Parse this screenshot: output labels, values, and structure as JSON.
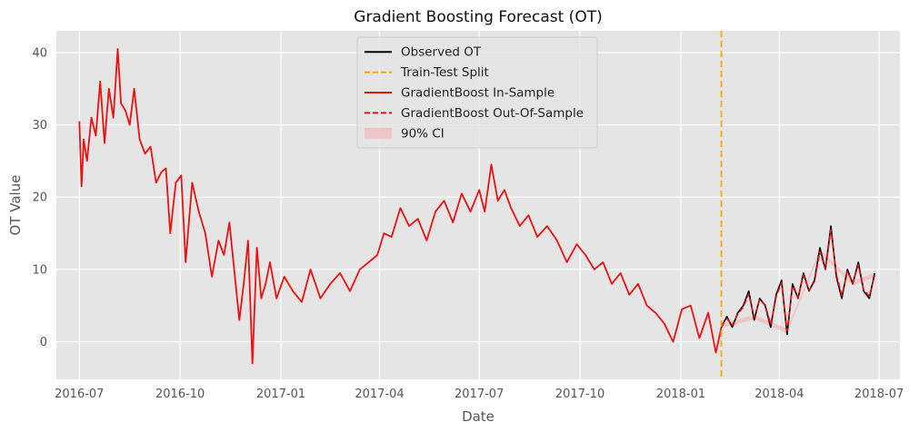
{
  "chart_data": {
    "type": "line",
    "title": "Gradient Boosting Forecast (OT)",
    "xlabel": "Date",
    "ylabel": "OT Value",
    "xlim": [
      "2016-06-10",
      "2018-07-20"
    ],
    "ylim": [
      -5.2,
      43
    ],
    "x_ticks": [
      "2016-07",
      "2016-10",
      "2017-01",
      "2017-04",
      "2017-07",
      "2017-10",
      "2018-01",
      "2018-04",
      "2018-07"
    ],
    "y_ticks": [
      0,
      10,
      20,
      30,
      40
    ],
    "grid": true,
    "legend_position": "top-center",
    "split_date": "2018-02-07",
    "colors": {
      "observed": "#000000",
      "split": "#FFA500",
      "in_sample": "#EE1111",
      "out_of_sample": "#EE1111",
      "ci": "#F4B8B8",
      "plot_bg": "#E5E5E5",
      "grid": "#FFFFFF"
    },
    "legend": [
      {
        "key": "observed",
        "label": "Observed OT",
        "style": "solid-line"
      },
      {
        "key": "split",
        "label": "Train-Test Split",
        "style": "dashed-line"
      },
      {
        "key": "in_sample",
        "label": "GradientBoost In-Sample",
        "style": "solid-line"
      },
      {
        "key": "out_of_sample",
        "label": "GradientBoost Out-Of-Sample",
        "style": "dashed-line"
      },
      {
        "key": "ci",
        "label": "90% CI",
        "style": "patch"
      }
    ],
    "series": [
      {
        "name": "GradientBoost In-Sample",
        "x": [
          "2016-07-01",
          "2016-07-03",
          "2016-07-05",
          "2016-07-08",
          "2016-07-12",
          "2016-07-16",
          "2016-07-20",
          "2016-07-24",
          "2016-07-28",
          "2016-08-01",
          "2016-08-05",
          "2016-08-08",
          "2016-08-12",
          "2016-08-16",
          "2016-08-20",
          "2016-08-25",
          "2016-08-30",
          "2016-09-04",
          "2016-09-09",
          "2016-09-14",
          "2016-09-18",
          "2016-09-22",
          "2016-09-27",
          "2016-10-02",
          "2016-10-06",
          "2016-10-12",
          "2016-10-18",
          "2016-10-24",
          "2016-10-30",
          "2016-11-05",
          "2016-11-10",
          "2016-11-15",
          "2016-11-20",
          "2016-11-24",
          "2016-11-28",
          "2016-12-02",
          "2016-12-06",
          "2016-12-10",
          "2016-12-14",
          "2016-12-18",
          "2016-12-22",
          "2016-12-28",
          "2017-01-04",
          "2017-01-12",
          "2017-01-20",
          "2017-01-28",
          "2017-02-06",
          "2017-02-15",
          "2017-02-24",
          "2017-03-05",
          "2017-03-14",
          "2017-03-22",
          "2017-03-30",
          "2017-04-05",
          "2017-04-12",
          "2017-04-20",
          "2017-04-28",
          "2017-05-06",
          "2017-05-14",
          "2017-05-22",
          "2017-05-30",
          "2017-06-07",
          "2017-06-15",
          "2017-06-23",
          "2017-07-01",
          "2017-07-06",
          "2017-07-12",
          "2017-07-18",
          "2017-07-24",
          "2017-07-30",
          "2017-08-07",
          "2017-08-15",
          "2017-08-23",
          "2017-09-01",
          "2017-09-10",
          "2017-09-19",
          "2017-09-28",
          "2017-10-06",
          "2017-10-14",
          "2017-10-22",
          "2017-10-30",
          "2017-11-07",
          "2017-11-15",
          "2017-11-23",
          "2017-12-01",
          "2017-12-09",
          "2017-12-17",
          "2017-12-25",
          "2018-01-02",
          "2018-01-10",
          "2018-01-18",
          "2018-01-26",
          "2018-02-02",
          "2018-02-07"
        ],
        "values": [
          30.5,
          21.5,
          28.0,
          25.0,
          31.0,
          28.5,
          36.0,
          27.5,
          35.0,
          31.0,
          40.5,
          33.0,
          32.0,
          30.0,
          35.0,
          28.0,
          26.0,
          27.0,
          22.0,
          23.5,
          24.0,
          15.0,
          22.0,
          23.0,
          11.0,
          22.0,
          18.0,
          15.0,
          9.0,
          14.0,
          12.0,
          16.5,
          9.0,
          3.0,
          8.0,
          14.0,
          -3.0,
          13.0,
          6.0,
          8.0,
          11.0,
          6.0,
          9.0,
          7.0,
          5.5,
          10.0,
          6.0,
          8.0,
          9.5,
          7.0,
          10.0,
          11.0,
          12.0,
          15.0,
          14.5,
          18.5,
          16.0,
          17.0,
          14.0,
          18.0,
          19.5,
          16.5,
          20.5,
          18.0,
          21.0,
          18.0,
          24.5,
          19.5,
          21.0,
          18.5,
          16.0,
          17.5,
          14.5,
          16.0,
          14.0,
          11.0,
          13.5,
          12.0,
          10.0,
          11.0,
          8.0,
          9.5,
          6.5,
          8.0,
          5.0,
          4.0,
          2.5,
          0.0,
          4.5,
          5.0,
          0.5,
          4.0,
          -1.5,
          2.0
        ]
      },
      {
        "name": "Observed OT",
        "x": [
          "2018-02-07",
          "2018-02-12",
          "2018-02-17",
          "2018-02-22",
          "2018-02-27",
          "2018-03-04",
          "2018-03-09",
          "2018-03-14",
          "2018-03-19",
          "2018-03-24",
          "2018-03-29",
          "2018-04-03",
          "2018-04-08",
          "2018-04-13",
          "2018-04-18",
          "2018-04-23",
          "2018-04-28",
          "2018-05-03",
          "2018-05-08",
          "2018-05-13",
          "2018-05-18",
          "2018-05-23",
          "2018-05-28",
          "2018-06-02",
          "2018-06-07",
          "2018-06-12",
          "2018-06-17",
          "2018-06-22",
          "2018-06-27"
        ],
        "values": [
          2.0,
          3.5,
          2.0,
          4.0,
          5.0,
          7.0,
          3.0,
          6.0,
          5.0,
          2.0,
          6.5,
          8.5,
          1.0,
          8.0,
          6.0,
          9.5,
          7.0,
          8.5,
          13.0,
          10.0,
          16.0,
          9.0,
          6.0,
          10.0,
          8.0,
          11.0,
          7.0,
          6.0,
          9.5
        ]
      },
      {
        "name": "GradientBoost Out-Of-Sample",
        "x": [
          "2018-02-07",
          "2018-02-12",
          "2018-02-17",
          "2018-02-22",
          "2018-02-27",
          "2018-03-04",
          "2018-03-09",
          "2018-03-14",
          "2018-03-19",
          "2018-03-24",
          "2018-03-29",
          "2018-04-03",
          "2018-04-08",
          "2018-04-13",
          "2018-04-18",
          "2018-04-23",
          "2018-04-28",
          "2018-05-03",
          "2018-05-08",
          "2018-05-13",
          "2018-05-18",
          "2018-05-23",
          "2018-05-28",
          "2018-06-02",
          "2018-06-07",
          "2018-06-12",
          "2018-06-17",
          "2018-06-22",
          "2018-06-27"
        ],
        "values": [
          2.2,
          3.2,
          2.3,
          3.8,
          4.8,
          6.6,
          3.4,
          5.8,
          5.1,
          2.4,
          6.2,
          8.2,
          1.5,
          7.7,
          6.1,
          9.2,
          7.1,
          8.3,
          12.5,
          10.0,
          15.5,
          9.3,
          6.4,
          9.7,
          8.1,
          10.6,
          7.2,
          6.3,
          9.2
        ]
      }
    ],
    "ci_band": {
      "label": "90% CI",
      "x": [
        "2018-02-07",
        "2018-03-09",
        "2018-04-08",
        "2018-05-08",
        "2018-06-07",
        "2018-06-27"
      ],
      "lower": [
        1.9,
        3.1,
        1.2,
        12.2,
        7.8,
        8.9
      ],
      "upper": [
        2.5,
        3.7,
        1.8,
        12.8,
        8.4,
        9.5
      ]
    }
  }
}
